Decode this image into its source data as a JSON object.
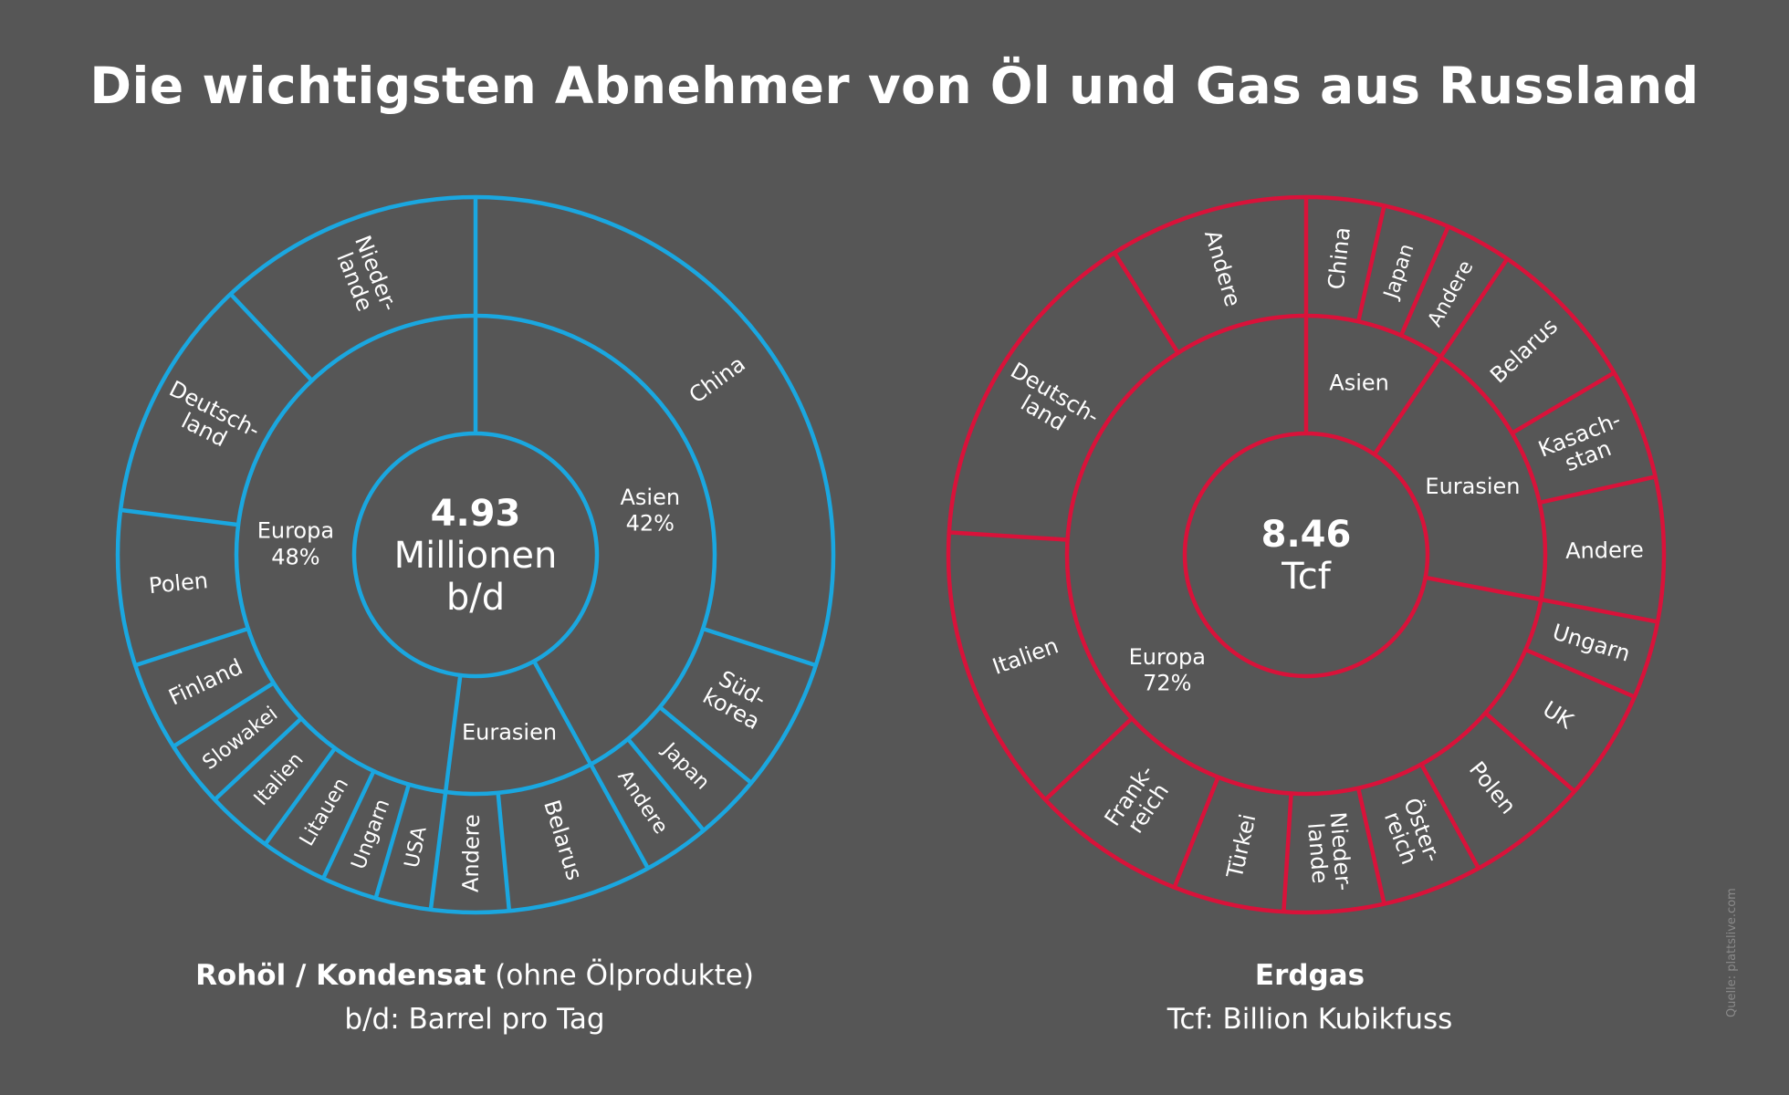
{
  "title": "Die wichtigsten Abnehmer von Öl und Gas aus Russland",
  "colors": {
    "background": "#565656",
    "oil": "#1aa7e0",
    "gas": "#d9123a",
    "text": "#ffffff"
  },
  "source": "Quelle: plattslive.com",
  "chart_data": [
    {
      "type": "sunburst",
      "center_value": "4.93",
      "center_unit_lines": [
        "Millionen",
        "b/d"
      ],
      "caption_bold": "Rohöl / Kondensat",
      "caption_rest": " (ohne Ölprodukte)",
      "caption_line2": "b/d: Barrel pro Tag",
      "regions": [
        {
          "name": "Asien",
          "pct_label": "42%",
          "share": 42,
          "countries": [
            {
              "name": "China",
              "share": 30
            },
            {
              "name": "Süd-korea",
              "share": 6
            },
            {
              "name": "Japan",
              "share": 3
            },
            {
              "name": "Andere",
              "share": 3
            }
          ]
        },
        {
          "name": "Eurasien",
          "pct_label": "",
          "share": 10,
          "countries": [
            {
              "name": "Belarus",
              "share": 6.5
            },
            {
              "name": "Andere",
              "share": 3.5
            }
          ]
        },
        {
          "name": "Europa",
          "pct_label": "48%",
          "share": 48,
          "countries": [
            {
              "name": "USA",
              "share": 2.5
            },
            {
              "name": "Ungarn",
              "share": 2.5
            },
            {
              "name": "Litauen",
              "share": 3
            },
            {
              "name": "Italien",
              "share": 3
            },
            {
              "name": "Slowakei",
              "share": 3
            },
            {
              "name": "Finland",
              "share": 4
            },
            {
              "name": "Polen",
              "share": 7
            },
            {
              "name": "Deutsch-land",
              "share": 11
            },
            {
              "name": "Nieder-lande",
              "share": 12
            }
          ]
        }
      ]
    },
    {
      "type": "sunburst",
      "center_value": "8.46",
      "center_unit_lines": [
        "Tcf"
      ],
      "caption_bold": "Erdgas",
      "caption_rest": "",
      "caption_line2": "Tcf:  Billion Kubikfuss",
      "regions": [
        {
          "name": "Asien",
          "pct_label": "",
          "share": 9.5,
          "countries": [
            {
              "name": "China",
              "share": 3.5
            },
            {
              "name": "Japan",
              "share": 3
            },
            {
              "name": "Andere",
              "share": 3
            }
          ]
        },
        {
          "name": "Eurasien",
          "pct_label": "",
          "share": 18.5,
          "countries": [
            {
              "name": "Belarus",
              "share": 7
            },
            {
              "name": "Kasach-stan",
              "share": 5
            },
            {
              "name": "Andere",
              "share": 6.5
            }
          ]
        },
        {
          "name": "Europa",
          "pct_label": "72%",
          "share": 72,
          "countries": [
            {
              "name": "Ungarn",
              "share": 3.5
            },
            {
              "name": "UK",
              "share": 5
            },
            {
              "name": "Polen",
              "share": 5.5
            },
            {
              "name": "Öster-reich",
              "share": 4.5
            },
            {
              "name": "Nieder-lande",
              "share": 4.5
            },
            {
              "name": "Türkei",
              "share": 5
            },
            {
              "name": "Frank-reich",
              "share": 7
            },
            {
              "name": "Italien",
              "share": 13
            },
            {
              "name": "Deutsch-land",
              "share": 15
            },
            {
              "name": "Andere",
              "share": 9
            }
          ]
        }
      ]
    }
  ]
}
